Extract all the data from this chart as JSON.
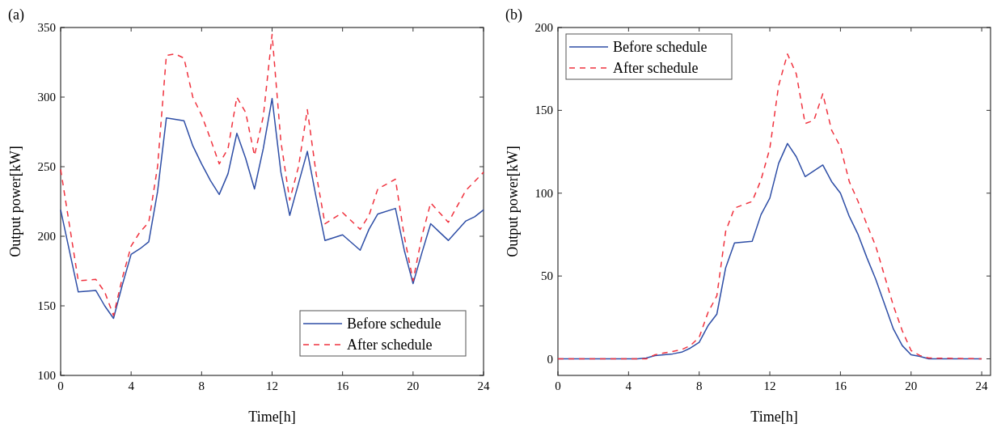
{
  "chart_data": [
    {
      "type": "line",
      "title": "(a)",
      "xlabel": "Time[h]",
      "ylabel": "Output power[kW]",
      "xlim": [
        0,
        24
      ],
      "xticks": [
        0,
        4,
        8,
        12,
        16,
        20,
        24
      ],
      "ylim": [
        100,
        350
      ],
      "yticks": [
        100,
        150,
        200,
        250,
        300,
        350
      ],
      "legend": "bottom right",
      "grid": false,
      "series": [
        {
          "name": "Before schedule",
          "color": "#2e4ea6",
          "line_style": "solid",
          "x": [
            0,
            1,
            2,
            2.5,
            3,
            3.5,
            4,
            4.5,
            5,
            5.5,
            6,
            7,
            7.5,
            8,
            8.5,
            9,
            9.5,
            10,
            10.5,
            11,
            11.5,
            12,
            12.5,
            13,
            14,
            14.5,
            15,
            15.5,
            16,
            17,
            17.5,
            18,
            19,
            19.5,
            20,
            20.5,
            21,
            21.5,
            22,
            23,
            23.5,
            24
          ],
          "values": [
            219,
            160,
            161,
            150,
            141,
            165,
            187,
            191,
            196,
            232,
            285,
            283,
            265,
            252,
            240,
            230,
            245,
            274,
            256,
            234,
            263,
            299,
            246,
            215,
            261,
            228,
            197,
            199,
            201,
            190,
            205,
            216,
            220,
            190,
            166,
            188,
            209,
            203,
            197,
            211,
            214,
            219
          ]
        },
        {
          "name": "After schedule",
          "color": "#f0333f",
          "line_style": "dashed",
          "x": [
            0,
            1,
            2,
            2.5,
            3,
            3.5,
            4,
            4.5,
            5,
            5.5,
            6,
            6.5,
            7,
            7.5,
            8,
            8.5,
            9,
            9.5,
            10,
            10.5,
            11,
            11.5,
            12,
            12.5,
            13,
            13.5,
            14,
            14.5,
            15,
            16,
            17,
            17.5,
            18,
            19,
            19.5,
            20,
            20.5,
            21,
            22,
            23,
            24
          ],
          "values": [
            248,
            168,
            169,
            160,
            143,
            170,
            193,
            203,
            210,
            250,
            330,
            331,
            328,
            300,
            287,
            270,
            252,
            263,
            300,
            289,
            258,
            286,
            345,
            268,
            226,
            250,
            291,
            245,
            209,
            217,
            205,
            215,
            234,
            241,
            200,
            168,
            200,
            224,
            210,
            233,
            246
          ]
        }
      ]
    },
    {
      "type": "line",
      "title": "(b)",
      "xlabel": "Time[h]",
      "ylabel": "Output power[kW]",
      "xlim": [
        0,
        24.5
      ],
      "xticks": [
        0,
        4,
        8,
        12,
        16,
        20,
        24
      ],
      "ylim": [
        -10,
        200
      ],
      "yticks": [
        0,
        50,
        100,
        150,
        200
      ],
      "legend": "top left",
      "grid": false,
      "series": [
        {
          "name": "Before schedule",
          "color": "#2e4ea6",
          "line_style": "solid",
          "x": [
            0,
            4.5,
            5,
            5.5,
            6,
            6.5,
            7,
            7.5,
            8,
            8.5,
            9,
            9.5,
            10,
            11,
            11.5,
            12,
            12.5,
            13,
            13.5,
            14,
            15,
            15.5,
            16,
            16.5,
            17,
            17.5,
            18,
            18.5,
            19,
            19.5,
            20,
            20.5,
            21,
            24
          ],
          "values": [
            0,
            0,
            0.5,
            2,
            2.5,
            3,
            4,
            6.5,
            10,
            20,
            27,
            55,
            70,
            71,
            87,
            97,
            118,
            130,
            122,
            110,
            117,
            107,
            100,
            86,
            75,
            61,
            48,
            33,
            18,
            8,
            2.5,
            1.5,
            0,
            0
          ]
        },
        {
          "name": "After schedule",
          "color": "#f0333f",
          "line_style": "dashed",
          "x": [
            0,
            5,
            5.5,
            6,
            7,
            7.5,
            8,
            8.5,
            9,
            9.5,
            10,
            10.5,
            11,
            11.5,
            12,
            12.5,
            13,
            13.5,
            14,
            14.5,
            15,
            15.5,
            16,
            16.5,
            17,
            17.5,
            18,
            18.5,
            19,
            19.5,
            20,
            20.5,
            21,
            24
          ],
          "values": [
            0,
            0,
            2.5,
            3.5,
            5.5,
            8,
            13,
            28,
            38,
            77,
            91,
            93,
            95,
            108,
            127,
            165,
            184,
            172,
            142,
            144,
            160,
            138,
            128,
            107,
            95,
            81,
            68,
            50,
            32,
            17,
            5,
            2,
            0.5,
            0
          ]
        }
      ]
    }
  ]
}
